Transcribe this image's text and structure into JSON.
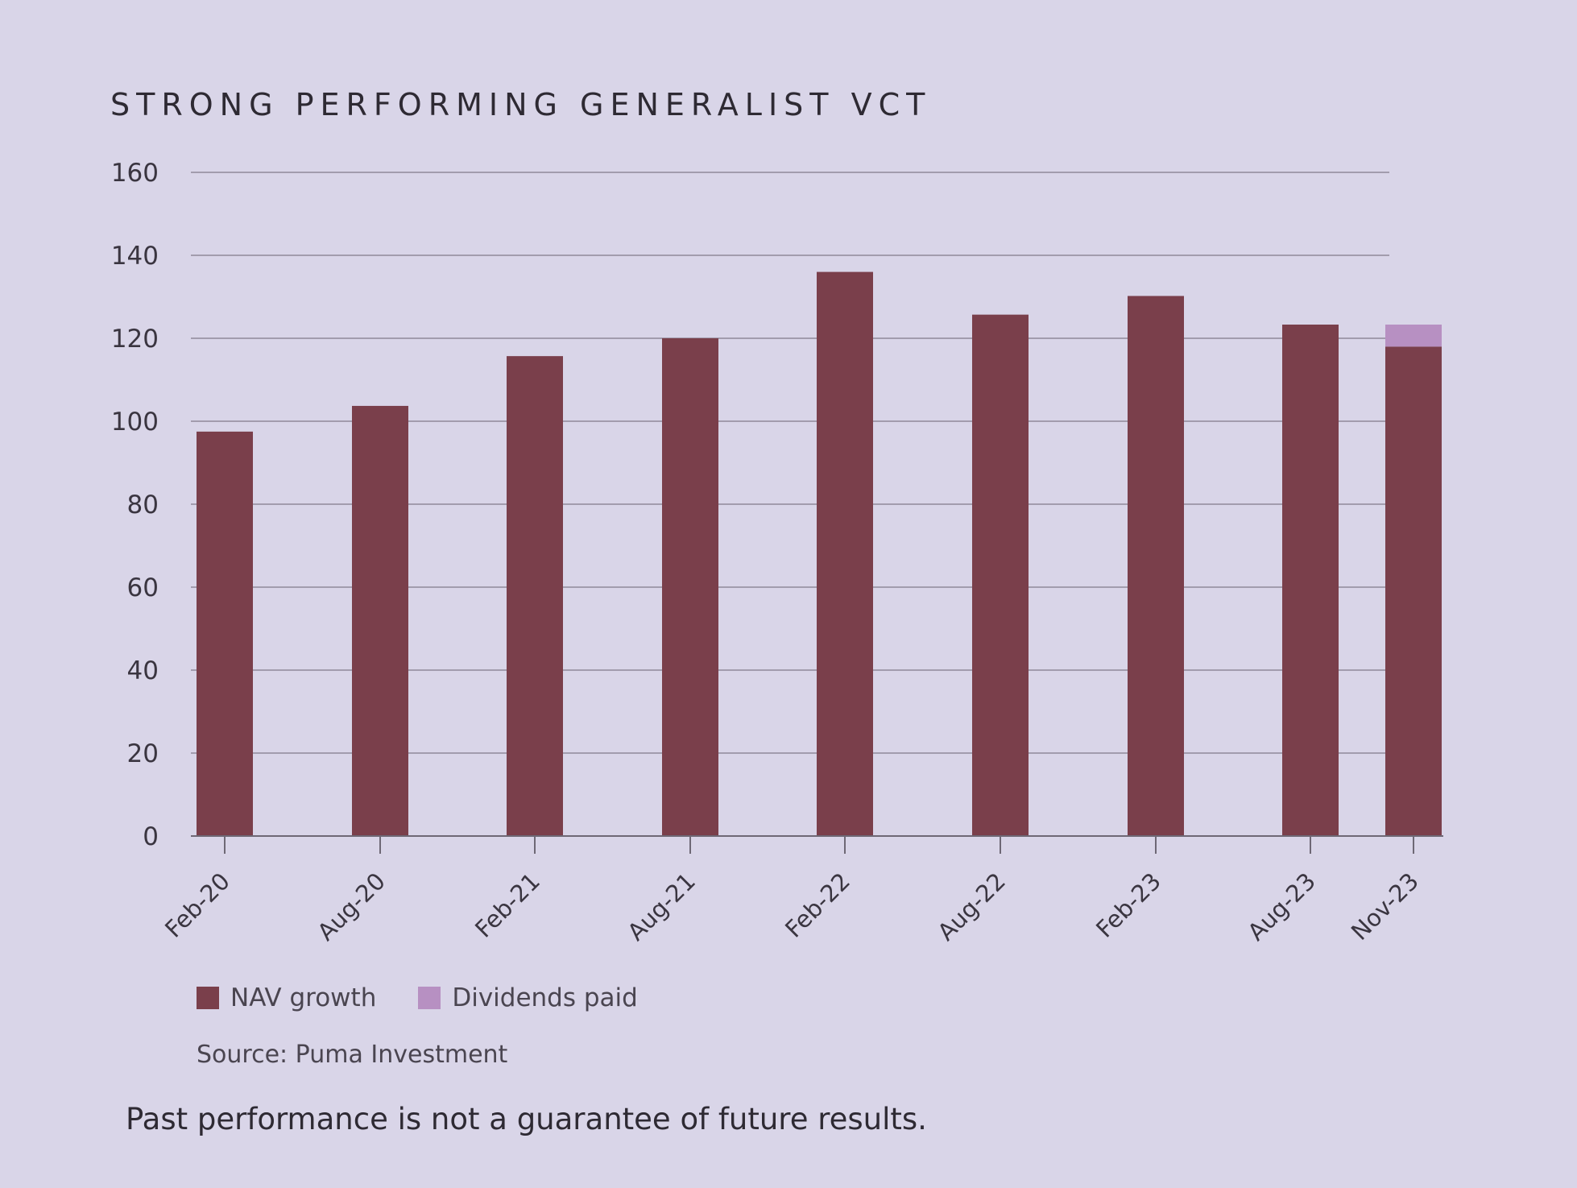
{
  "chart_data": {
    "type": "bar",
    "stacked": true,
    "title": "STRONG PERFORMING GENERALIST VCT",
    "categories": [
      "Feb-20",
      "Aug-20",
      "Feb-21",
      "Aug-21",
      "Feb-22",
      "Aug-22",
      "Feb-23",
      "Aug-23",
      "Nov-23"
    ],
    "series": [
      {
        "name": "NAV growth",
        "color": "#7a3f4b",
        "values": [
          97.5,
          103.7,
          115.7,
          120,
          136,
          125.7,
          130.2,
          123.3,
          118
        ]
      },
      {
        "name": "Dividends paid",
        "color": "#b790c2",
        "values": [
          0,
          0,
          0,
          0,
          0,
          0,
          0,
          0,
          5.3
        ]
      }
    ],
    "ylim": [
      0,
      160
    ],
    "yticks": [
      0,
      20,
      40,
      60,
      80,
      100,
      120,
      140,
      160
    ],
    "xlabel": "",
    "ylabel": "",
    "grid": true,
    "legend_position": "bottom-left"
  },
  "source": "Source: Puma Investment",
  "disclaimer": "Past performance is not a guarantee of future results.",
  "colors": {
    "background": "#d9d5e8",
    "gridline": "#8f8a99",
    "axis": "#6e6875",
    "text": "#2e2a33"
  }
}
